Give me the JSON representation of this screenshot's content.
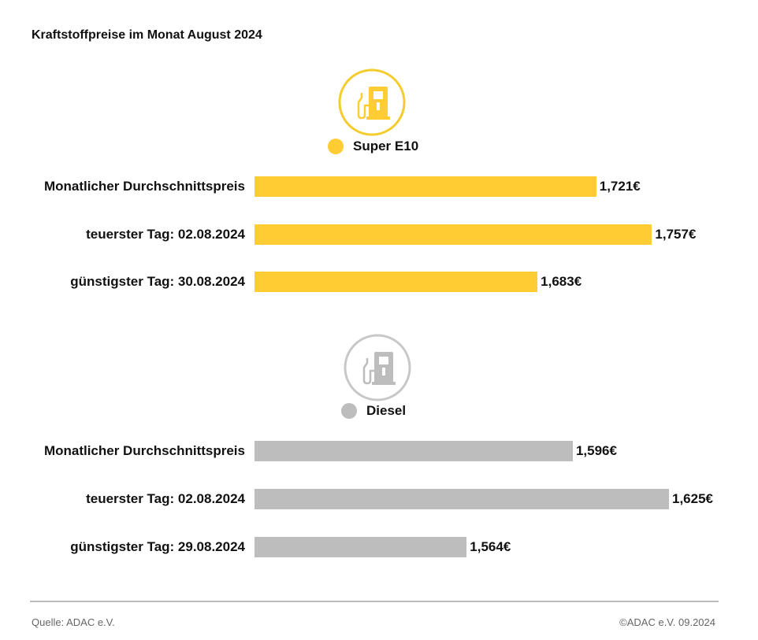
{
  "title": "Kraftstoffpreise im Monat August 2024",
  "footer": {
    "source": "Quelle: ADAC e.V.",
    "copyright": "©ADAC e.V. 09.2024"
  },
  "chart_data": [
    {
      "type": "bar",
      "orientation": "horizontal",
      "series_name": "Super E10",
      "color": "#FFCC33",
      "icon": "fuel-pump-icon",
      "categories": [
        "Monatlicher Durchschnittspreis",
        "teuerster Tag: 02.08.2024",
        "günstigster Tag: 30.08.2024"
      ],
      "values": [
        1.721,
        1.757,
        1.683
      ],
      "labels": [
        "1,721€",
        "1,757€",
        "1,683€"
      ],
      "xlim": [
        1.5,
        1.768
      ],
      "grid": false
    },
    {
      "type": "bar",
      "orientation": "horizontal",
      "series_name": "Diesel",
      "color": "#BDBDBD",
      "icon": "fuel-pump-icon",
      "categories": [
        "Monatlicher Durchschnittspreis",
        "teuerster Tag: 02.08.2024",
        "günstigster Tag: 29.08.2024"
      ],
      "values": [
        1.596,
        1.625,
        1.564
      ],
      "labels": [
        "1,596€",
        "1,625€",
        "1,564€"
      ],
      "xlim": [
        1.5,
        1.625
      ],
      "grid": false
    }
  ]
}
